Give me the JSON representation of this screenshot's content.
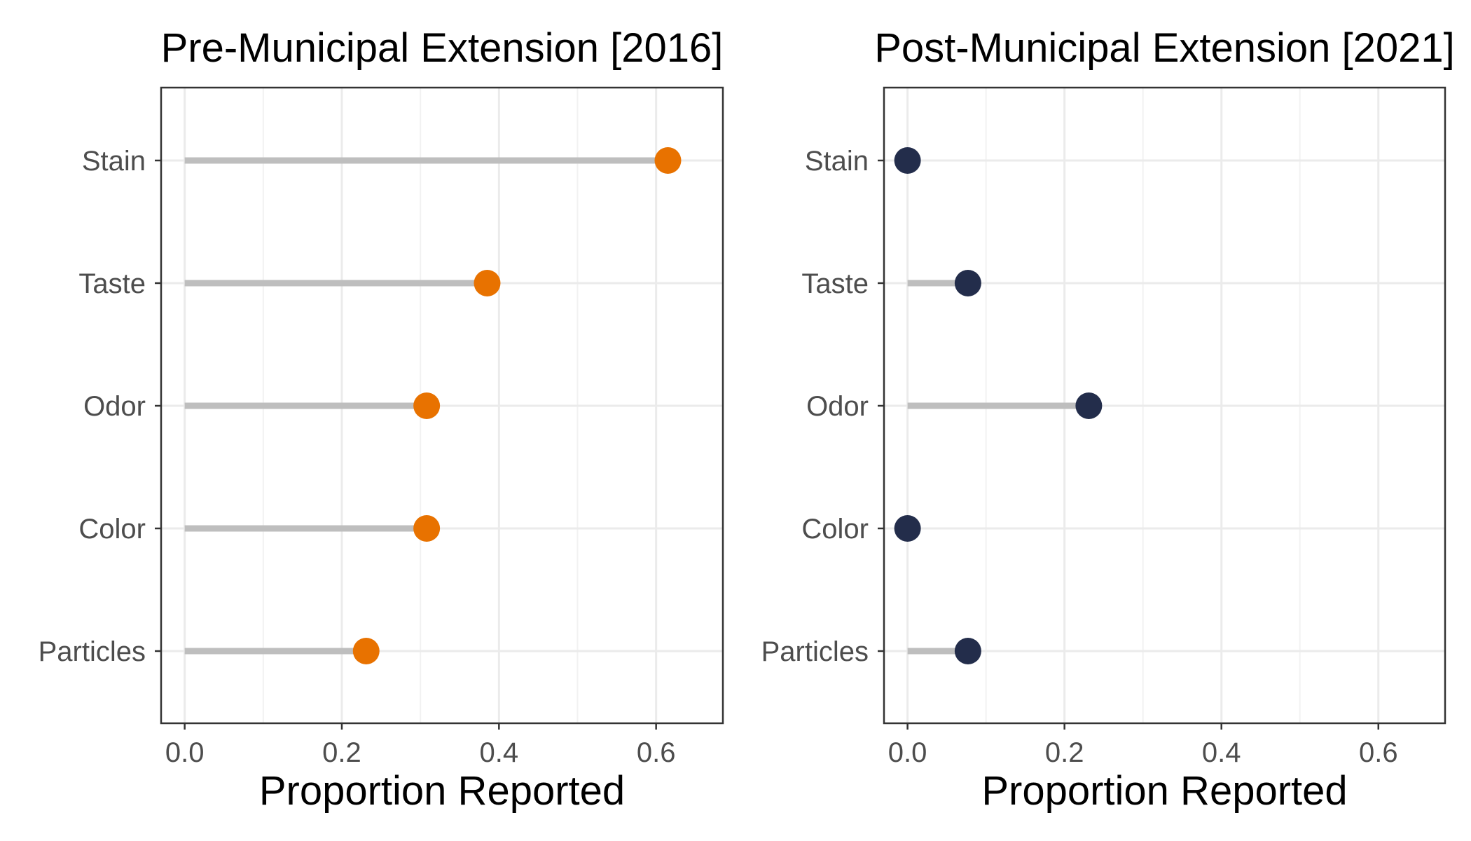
{
  "chart_data": [
    {
      "type": "lollipop",
      "title": "Pre-Municipal Extension [2016]",
      "xlabel": "Proportion Reported",
      "ylabel": "",
      "categories": [
        "Stain",
        "Taste",
        "Odor",
        "Color",
        "Particles"
      ],
      "values": [
        0.615,
        0.385,
        0.308,
        0.308,
        0.231
      ],
      "xlim": [
        -0.03,
        0.685
      ],
      "xticks": [
        0.0,
        0.2,
        0.4,
        0.6
      ],
      "xtick_labels": [
        "0.0",
        "0.2",
        "0.4",
        "0.6"
      ],
      "point_color": "#E87200",
      "stem_color": "#BEBEBE",
      "grid": true,
      "legend": "none"
    },
    {
      "type": "lollipop",
      "title": "Post-Municipal Extension [2021]",
      "xlabel": "Proportion Reported",
      "ylabel": "",
      "categories": [
        "Stain",
        "Taste",
        "Odor",
        "Color",
        "Particles"
      ],
      "values": [
        0.0,
        0.077,
        0.231,
        0.0,
        0.077
      ],
      "xlim": [
        -0.03,
        0.685
      ],
      "xticks": [
        0.0,
        0.2,
        0.4,
        0.6
      ],
      "xtick_labels": [
        "0.0",
        "0.2",
        "0.4",
        "0.6"
      ],
      "point_color": "#232D4B",
      "stem_color": "#BEBEBE",
      "grid": true,
      "legend": "none"
    }
  ]
}
